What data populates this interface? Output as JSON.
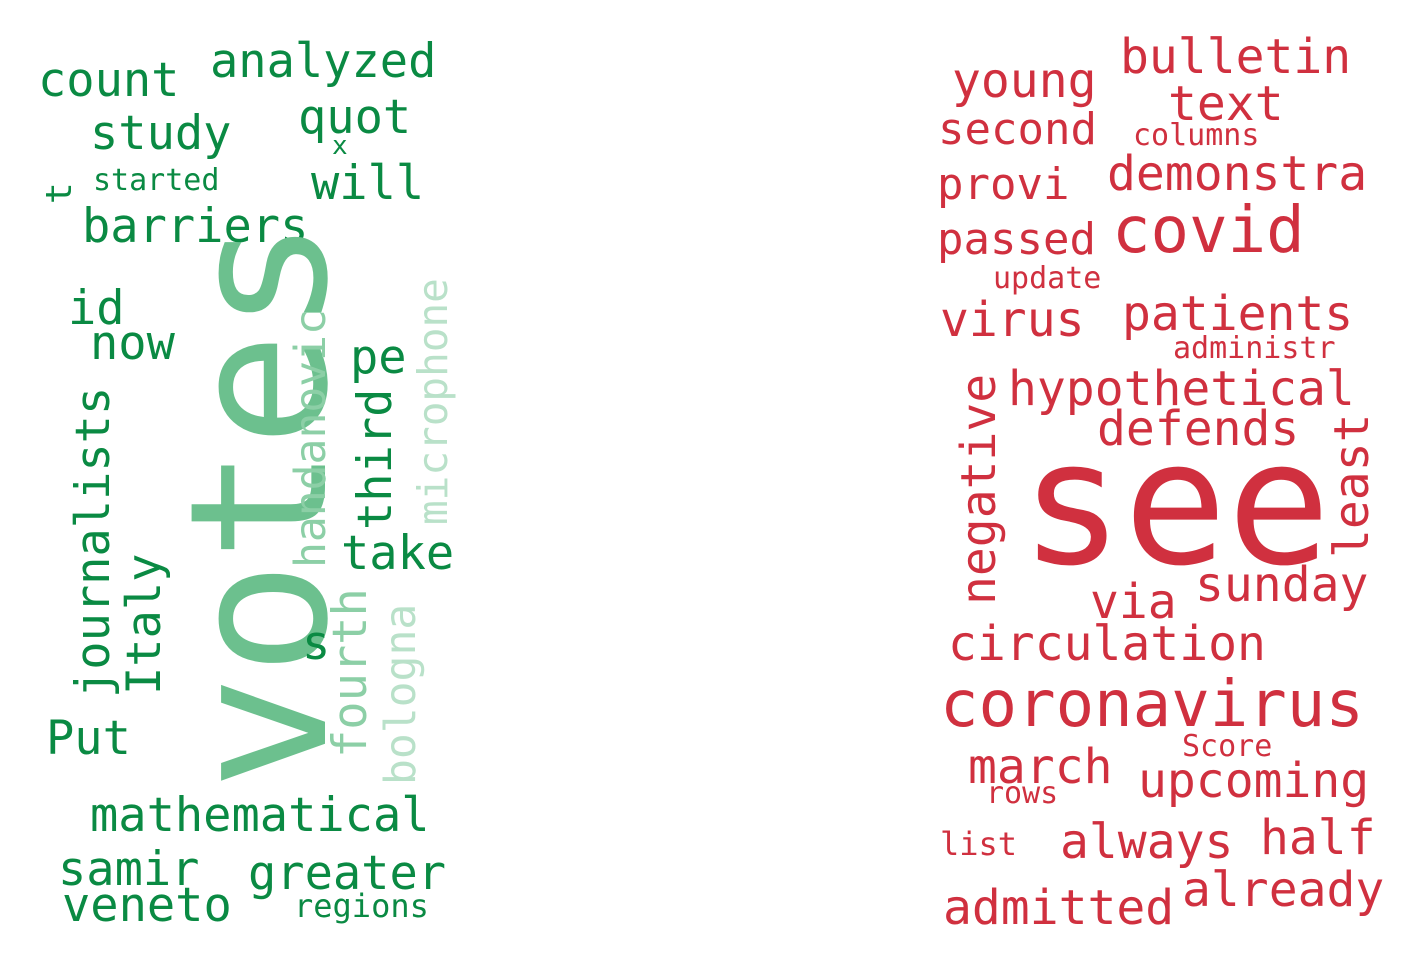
{
  "colors": {
    "green_dark": "#0a8a43",
    "green_mid": "#6cc08e",
    "green_light": "#b9e1c9",
    "red": "#d0303f"
  },
  "left_cloud": {
    "words": [
      "analyzed",
      "count",
      "quot",
      "study",
      "x",
      "will",
      "t",
      "started",
      "barriers",
      "id",
      "now",
      "votes",
      "handanovic",
      "microphone",
      "pe",
      "third",
      "journalists",
      "Italy",
      "take",
      "s",
      "fourth",
      "bologna",
      "Put",
      "mathematical",
      "samir",
      "greater",
      "veneto",
      "regions"
    ]
  },
  "right_cloud": {
    "words": [
      "bulletin",
      "young",
      "text",
      "second",
      "columns",
      "demonstra",
      "provi",
      "covid",
      "passed",
      "update",
      "patients",
      "virus",
      "administr",
      "hypothetical",
      "negative",
      "defends",
      "least",
      "see",
      "sunday",
      "via",
      "circulation",
      "coronavirus",
      "Score",
      "march",
      "upcoming",
      "rows",
      "half",
      "always",
      "list",
      "already",
      "admitted"
    ]
  }
}
